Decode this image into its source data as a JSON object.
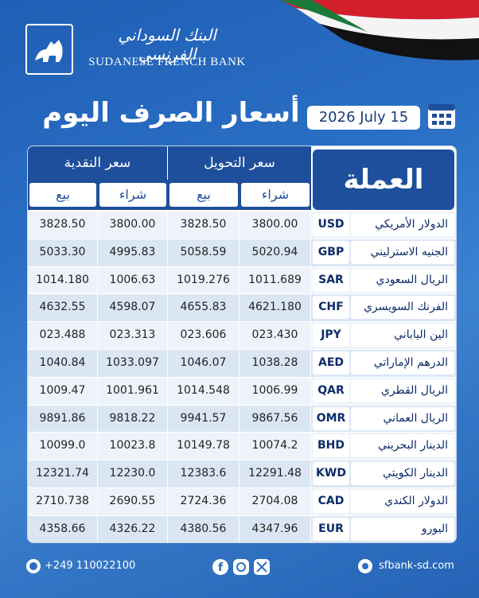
{
  "header": {
    "bank_name_ar": "البنك السوداني الفرنسي",
    "bank_name_en": "SUDANESE FRENCH BANK"
  },
  "title": "أسعار الصرف اليوم",
  "date": "2026 July 15",
  "table": {
    "currency_header": "العملة",
    "transfer_header": "سعر التحويل",
    "cash_header": "سعر النقدية",
    "sub_headers": [
      "بيع",
      "شراء",
      "بيع",
      "شراء"
    ],
    "rows": [
      {
        "name": "الدولار الأمريكي",
        "code": "USD",
        "cash_sell": "3828.50",
        "cash_buy": "3800.00",
        "transfer_sell": "3828.50",
        "transfer_buy": "3800.00"
      },
      {
        "name": "الجنيه الاسترليني",
        "code": "GBP",
        "cash_sell": "5033.30",
        "cash_buy": "4995.83",
        "transfer_sell": "5058.59",
        "transfer_buy": "5020.94"
      },
      {
        "name": "الريال السعودي",
        "code": "SAR",
        "cash_sell": "1014.180",
        "cash_buy": "1006.63",
        "transfer_sell": "1019.276",
        "transfer_buy": "1011.689"
      },
      {
        "name": "الفرنك السويسري",
        "code": "CHF",
        "cash_sell": "4632.55",
        "cash_buy": "4598.07",
        "transfer_sell": "4655.83",
        "transfer_buy": "4621.180"
      },
      {
        "name": "الين الياباني",
        "code": "JPY",
        "cash_sell": "023.488",
        "cash_buy": "023.313",
        "transfer_sell": "023.606",
        "transfer_buy": "023.430"
      },
      {
        "name": "الدرهم الإماراتي",
        "code": "AED",
        "cash_sell": "1040.84",
        "cash_buy": "1033.097",
        "transfer_sell": "1046.07",
        "transfer_buy": "1038.28"
      },
      {
        "name": "الريال القطري",
        "code": "QAR",
        "cash_sell": "1009.47",
        "cash_buy": "1001.961",
        "transfer_sell": "1014.548",
        "transfer_buy": "1006.99"
      },
      {
        "name": "الريال العماني",
        "code": "OMR",
        "cash_sell": "9891.86",
        "cash_buy": "9818.22",
        "transfer_sell": "9941.57",
        "transfer_buy": "9867.56"
      },
      {
        "name": "الدينار البحريني",
        "code": "BHD",
        "cash_sell": "10099.0",
        "cash_buy": "10023.8",
        "transfer_sell": "10149.78",
        "transfer_buy": "10074.2"
      },
      {
        "name": "الدينار الكويتي",
        "code": "KWD",
        "cash_sell": "12321.74",
        "cash_buy": "12230.0",
        "transfer_sell": "12383.6",
        "transfer_buy": "12291.48"
      },
      {
        "name": "الدولار الكندي",
        "code": "CAD",
        "cash_sell": "2710.738",
        "cash_buy": "2690.55",
        "transfer_sell": "2724.36",
        "transfer_buy": "2704.08"
      },
      {
        "name": "اليورو",
        "code": "EUR",
        "cash_sell": "4358.66",
        "cash_buy": "4326.22",
        "transfer_sell": "4380.56",
        "transfer_buy": "4347.96"
      }
    ]
  },
  "footer": {
    "phone": "+249 110022100",
    "website": "sfbank-sd.com"
  }
}
